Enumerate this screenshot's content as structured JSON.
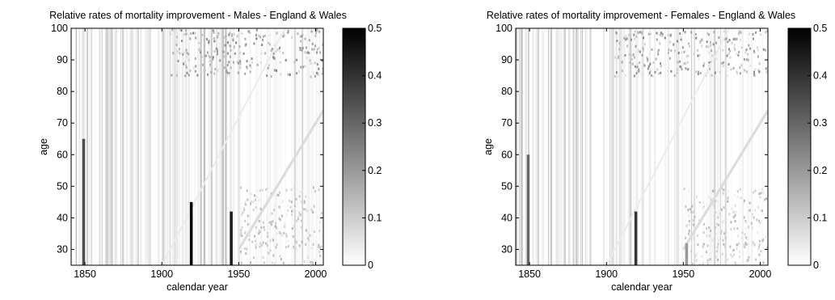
{
  "chart_data": [
    {
      "type": "heatmap",
      "title": "Relative rates of mortality improvement - Males - England & Wales",
      "xlabel": "calendar year",
      "ylabel": "age",
      "xlim": [
        1841,
        2005
      ],
      "ylim": [
        25,
        100
      ],
      "x_ticks": [
        "1850",
        "1900",
        "1950",
        "2000"
      ],
      "y_ticks": [
        "30",
        "40",
        "50",
        "60",
        "70",
        "80",
        "90",
        "100"
      ],
      "colormap": "gray-reversed",
      "colorbar": {
        "range": [
          0,
          0.5
        ],
        "ticks": [
          "0",
          "0.1",
          "0.2",
          "0.3",
          "0.4",
          "0.5"
        ]
      },
      "highlights": [
        {
          "year": 1849,
          "age_range": [
            25,
            65
          ],
          "value": 0.35
        },
        {
          "year": 1919,
          "age_range": [
            25,
            45
          ],
          "value": 0.5
        },
        {
          "year": 1945,
          "age_range": [
            25,
            42
          ],
          "value": 0.45
        }
      ]
    },
    {
      "type": "heatmap",
      "title": "Relative rates of mortality improvement - Females - England & Wales",
      "xlabel": "calendar year",
      "ylabel": "age",
      "xlim": [
        1841,
        2005
      ],
      "ylim": [
        25,
        100
      ],
      "x_ticks": [
        "1850",
        "1900",
        "1950",
        "2000"
      ],
      "y_ticks": [
        "30",
        "40",
        "50",
        "60",
        "70",
        "80",
        "90",
        "100"
      ],
      "colormap": "gray-reversed",
      "colorbar": {
        "range": [
          0,
          0.5
        ],
        "ticks": [
          "0",
          "0.1",
          "0.2",
          "0.3",
          "0.4",
          "0.5"
        ]
      },
      "highlights": [
        {
          "year": 1849,
          "age_range": [
            25,
            60
          ],
          "value": 0.3
        },
        {
          "year": 1919,
          "age_range": [
            25,
            42
          ],
          "value": 0.4
        },
        {
          "year": 1952,
          "age_range": [
            25,
            32
          ],
          "value": 0.2
        }
      ]
    }
  ]
}
